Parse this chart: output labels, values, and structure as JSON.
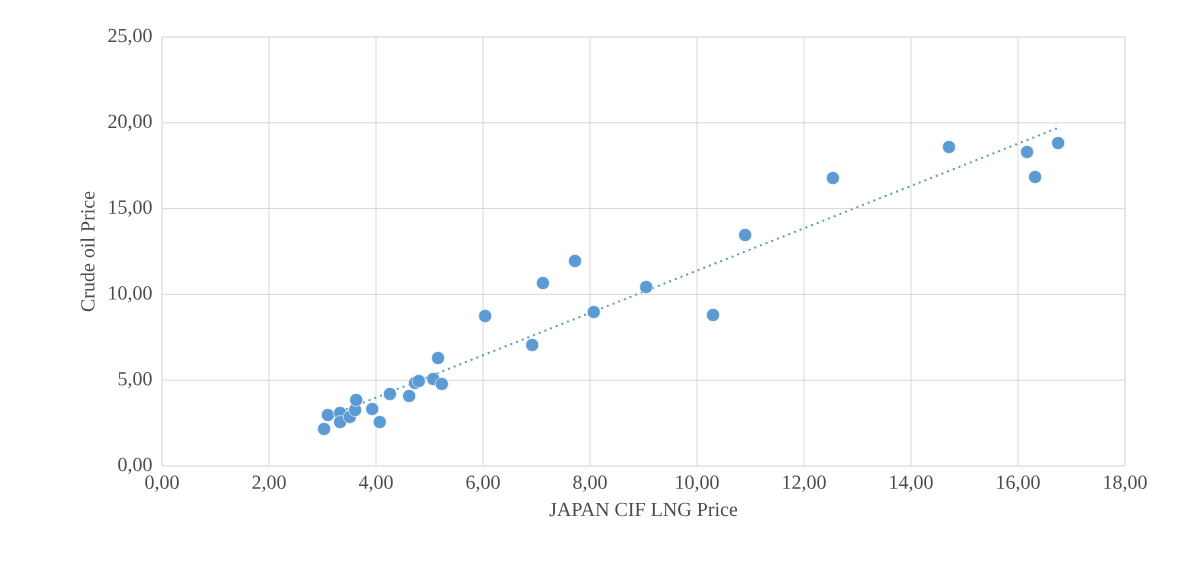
{
  "chart_data": {
    "type": "scatter",
    "xlabel": "JAPAN CIF LNG Price",
    "ylabel": "Crude oil Price",
    "xlim": [
      0,
      18
    ],
    "ylim": [
      0,
      25
    ],
    "xticks": [
      {
        "value": 0,
        "label": "0,00"
      },
      {
        "value": 2,
        "label": "2,00"
      },
      {
        "value": 4,
        "label": "4,00"
      },
      {
        "value": 6,
        "label": "6,00"
      },
      {
        "value": 8,
        "label": "8,00"
      },
      {
        "value": 10,
        "label": "10,00"
      },
      {
        "value": 12,
        "label": "12,00"
      },
      {
        "value": 14,
        "label": "14,00"
      },
      {
        "value": 16,
        "label": "16,00"
      },
      {
        "value": 18,
        "label": "18,00"
      }
    ],
    "yticks": [
      {
        "value": 0,
        "label": "0,00"
      },
      {
        "value": 5,
        "label": "5,00"
      },
      {
        "value": 10,
        "label": "10,00"
      },
      {
        "value": 15,
        "label": "15,00"
      },
      {
        "value": 20,
        "label": "20,00"
      },
      {
        "value": 25,
        "label": "25,00"
      }
    ],
    "grid": true,
    "marker": "circle",
    "series": [
      {
        "color": "#5b9bd5",
        "x": [
          3.03,
          3.1,
          3.33,
          3.33,
          3.51,
          3.61,
          3.63,
          3.93,
          4.07,
          4.26,
          4.62,
          4.73,
          4.8,
          5.07,
          5.23,
          5.16,
          6.04,
          7.12,
          7.72,
          6.92,
          8.07,
          9.05,
          10.3,
          10.9,
          12.54,
          14.71,
          16.17,
          16.32,
          16.75
        ],
        "values": [
          2.16,
          2.97,
          3.09,
          2.56,
          2.86,
          3.26,
          3.85,
          3.32,
          2.56,
          4.2,
          4.08,
          4.84,
          4.95,
          5.07,
          4.78,
          6.29,
          8.74,
          10.66,
          11.95,
          7.05,
          8.97,
          10.43,
          8.8,
          13.46,
          16.78,
          18.59,
          18.3,
          16.84,
          18.82
        ]
      },
      {
        "type": "line",
        "color": "#5b9bd5",
        "line_style": "dotted",
        "marker": "none",
        "x": [
          3.03,
          16.75
        ],
        "values": [
          2.79,
          19.71
        ]
      }
    ]
  }
}
